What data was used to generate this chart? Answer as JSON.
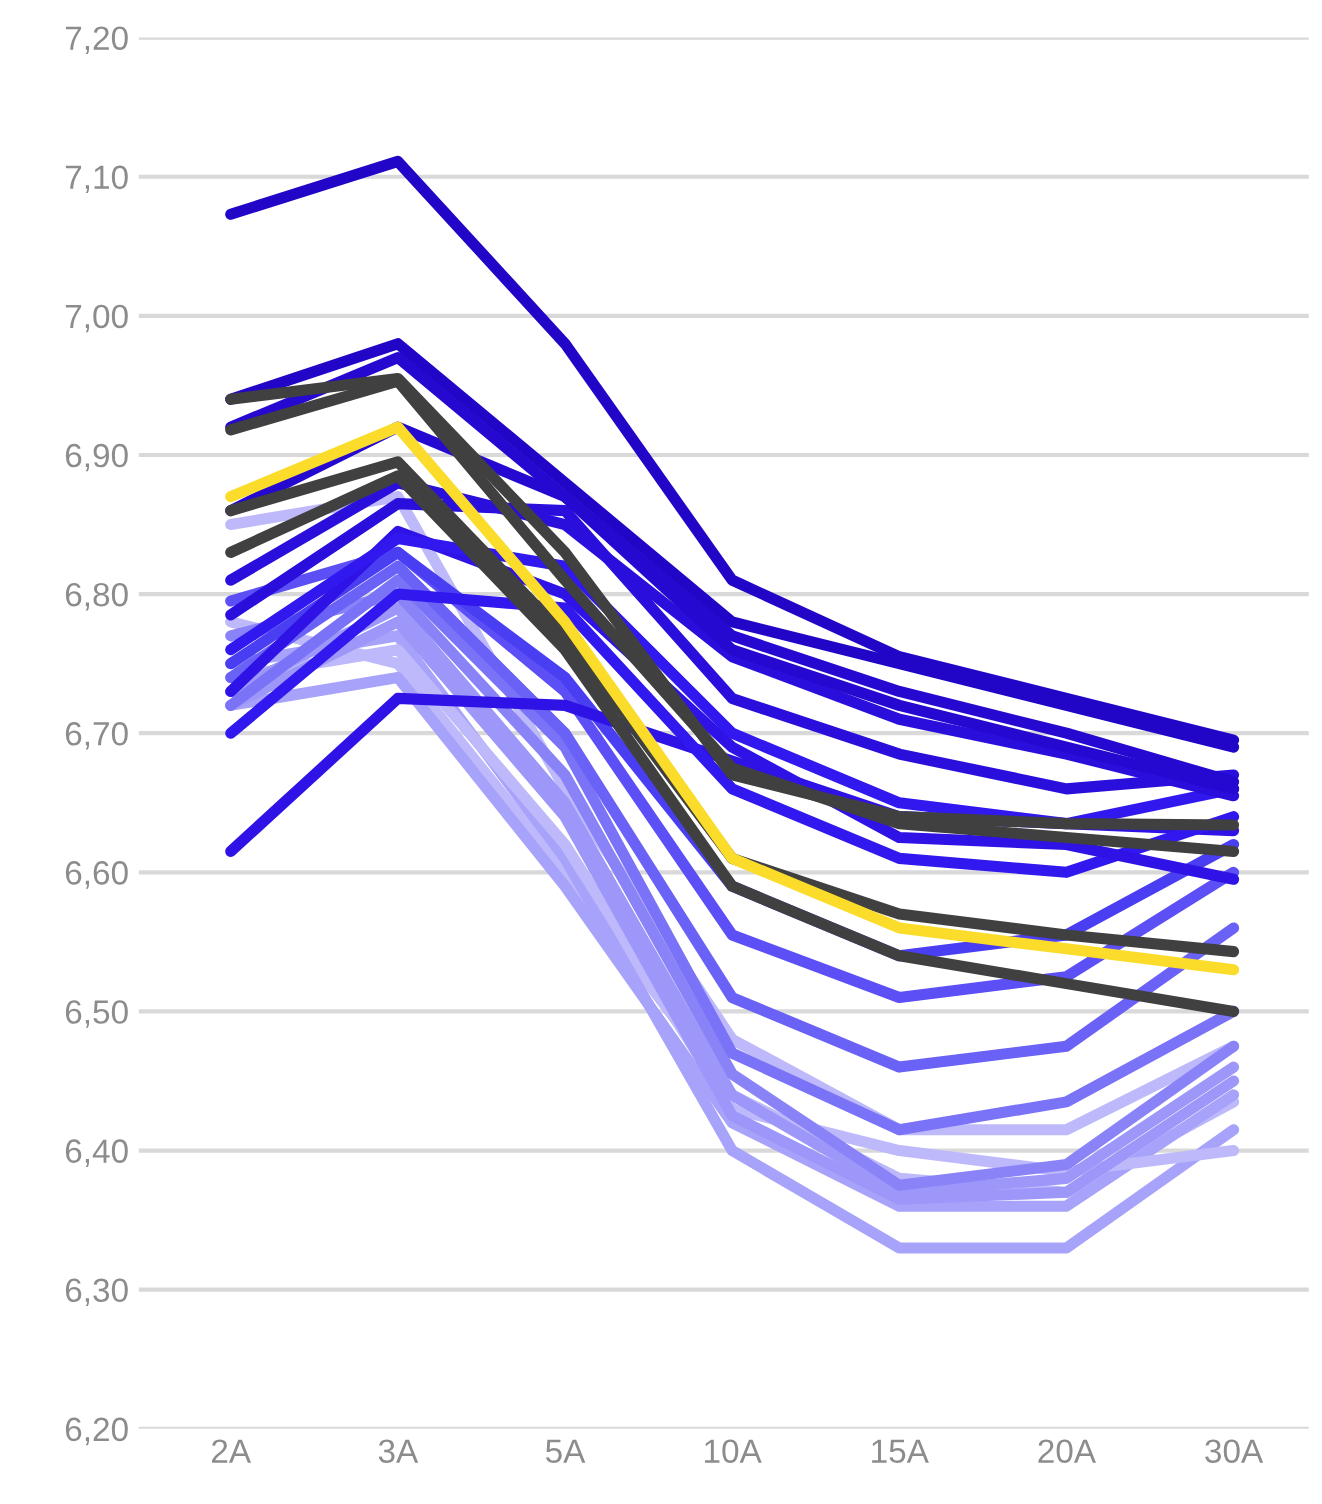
{
  "chart_data": {
    "type": "line",
    "relative": false,
    "categories": [
      "2A",
      "3A",
      "5A",
      "10A",
      "15A",
      "20A",
      "30A"
    ],
    "ylim": [
      6.2,
      7.2
    ],
    "yticks": [
      {
        "value": 6.2,
        "label": "6,20"
      },
      {
        "value": 6.3,
        "label": "6,30"
      },
      {
        "value": 6.4,
        "label": "6,40"
      },
      {
        "value": 6.5,
        "label": "6,50"
      },
      {
        "value": 6.6,
        "label": "6,60"
      },
      {
        "value": 6.7,
        "label": "6,70"
      },
      {
        "value": 6.8,
        "label": "6,80"
      },
      {
        "value": 6.9,
        "label": "6,90"
      },
      {
        "value": 7.0,
        "label": "7,00"
      },
      {
        "value": 7.1,
        "label": "7,10"
      },
      {
        "value": 7.2,
        "label": "7,20"
      }
    ],
    "grid": "y",
    "legend": false,
    "marker": "none",
    "line_style": "solid",
    "series": [
      {
        "color": "#bdb9fb",
        "values": [
          6.78,
          6.75,
          6.6,
          6.44,
          6.38,
          6.37,
          6.435
        ]
      },
      {
        "color": "#a7a2fa",
        "values": [
          6.72,
          6.74,
          6.59,
          6.42,
          6.36,
          6.36,
          6.44
        ]
      },
      {
        "color": "#a7a2fa",
        "values": [
          6.75,
          6.77,
          6.61,
          6.4,
          6.33,
          6.33,
          6.415
        ]
      },
      {
        "color": "#bdb9fb",
        "values": [
          6.74,
          6.76,
          6.62,
          6.43,
          6.4,
          6.385,
          6.4
        ]
      },
      {
        "color": "#bdb9fb",
        "values": [
          6.85,
          6.87,
          6.66,
          6.48,
          6.415,
          6.415,
          6.475
        ]
      },
      {
        "color": "#9d97f9",
        "values": [
          6.72,
          6.78,
          6.64,
          6.425,
          6.365,
          6.37,
          6.45
        ]
      },
      {
        "color": "#9d97f9",
        "values": [
          6.73,
          6.79,
          6.65,
          6.44,
          6.37,
          6.38,
          6.46
        ]
      },
      {
        "color": "#8a83f8",
        "values": [
          6.77,
          6.8,
          6.67,
          6.455,
          6.375,
          6.39,
          6.475
        ]
      },
      {
        "color": "#7b73f7",
        "values": [
          6.72,
          6.81,
          6.69,
          6.47,
          6.415,
          6.435,
          6.5
        ]
      },
      {
        "color": "#6a61f6",
        "values": [
          6.74,
          6.82,
          6.7,
          6.51,
          6.46,
          6.475,
          6.56
        ]
      },
      {
        "color": "#5b4ff5",
        "values": [
          6.795,
          6.83,
          6.73,
          6.555,
          6.51,
          6.525,
          6.6
        ]
      },
      {
        "color": "#4a3ef3",
        "values": [
          6.75,
          6.83,
          6.74,
          6.59,
          6.54,
          6.555,
          6.62
        ]
      },
      {
        "color": "#2f12e6",
        "values": [
          6.615,
          6.725,
          6.72,
          6.68,
          6.64,
          6.635,
          6.63
        ]
      },
      {
        "color": "#3018ee",
        "values": [
          6.7,
          6.8,
          6.79,
          6.66,
          6.61,
          6.6,
          6.64
        ]
      },
      {
        "color": "#2f12e6",
        "values": [
          6.73,
          6.845,
          6.8,
          6.69,
          6.625,
          6.62,
          6.595
        ]
      },
      {
        "color": "#3018ee",
        "values": [
          6.76,
          6.84,
          6.82,
          6.7,
          6.65,
          6.635,
          6.66
        ]
      },
      {
        "color": "#2a0fdc",
        "values": [
          6.785,
          6.865,
          6.86,
          6.725,
          6.685,
          6.66,
          6.67
        ]
      },
      {
        "color": "#2a0fdc",
        "values": [
          6.81,
          6.88,
          6.85,
          6.755,
          6.71,
          6.685,
          6.655
        ]
      },
      {
        "color": "#2509d0",
        "values": [
          6.86,
          6.92,
          6.87,
          6.76,
          6.72,
          6.69,
          6.66
        ]
      },
      {
        "color": "#2509d0",
        "values": [
          6.92,
          6.97,
          6.87,
          6.77,
          6.73,
          6.7,
          6.665
        ]
      },
      {
        "color": "#2206c8",
        "values": [
          6.94,
          6.98,
          6.88,
          6.78,
          6.75,
          6.72,
          6.69
        ]
      },
      {
        "color": "#2206c8",
        "values": [
          7.073,
          7.111,
          6.98,
          6.81,
          6.755,
          6.725,
          6.695
        ]
      },
      {
        "color": "#404040",
        "values": [
          6.83,
          6.885,
          6.76,
          6.59,
          6.54,
          6.52,
          6.5
        ]
      },
      {
        "color": "#404040",
        "values": [
          6.86,
          6.895,
          6.77,
          6.61,
          6.57,
          6.555,
          6.543
        ]
      },
      {
        "color": "#404040",
        "values": [
          6.918,
          6.953,
          6.81,
          6.675,
          6.635,
          6.625,
          6.615
        ]
      },
      {
        "color": "#404040",
        "values": [
          6.94,
          6.955,
          6.83,
          6.67,
          6.64,
          6.635,
          6.634
        ]
      },
      {
        "color": "#fbdc2a",
        "values": [
          6.87,
          6.92,
          6.78,
          6.61,
          6.56,
          6.545,
          6.53
        ]
      }
    ]
  }
}
